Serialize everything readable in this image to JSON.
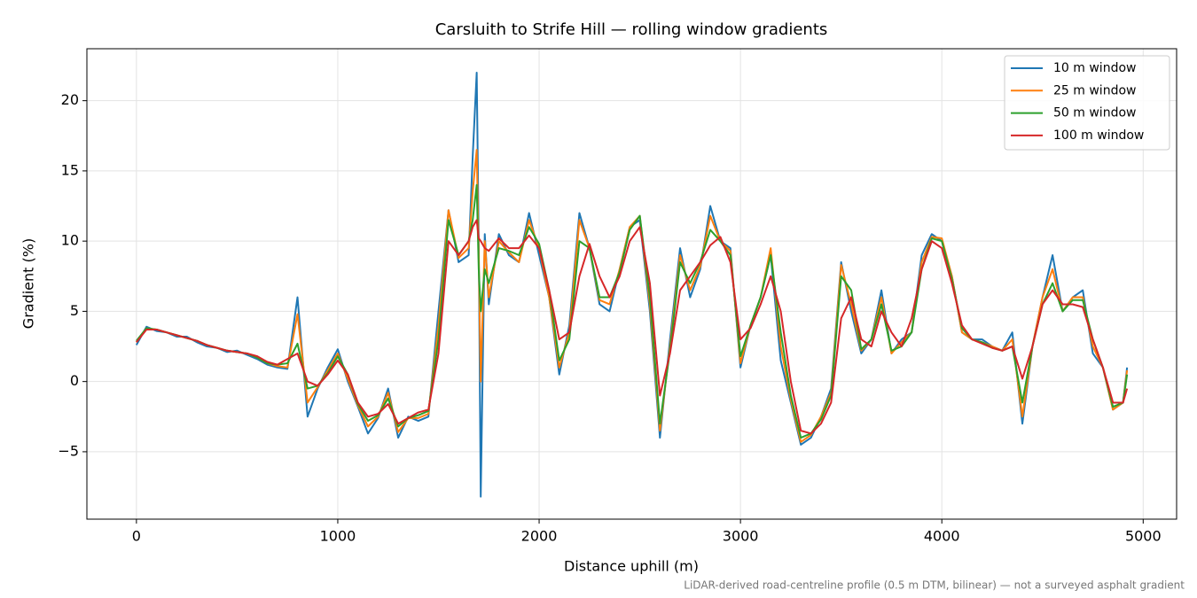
{
  "chart_data": {
    "type": "line",
    "title": "Carsluith to Strife Hill — rolling window gradients",
    "xlabel": "Distance uphill (m)",
    "ylabel": "Gradient (%)",
    "note": "LiDAR-derived road-centreline profile (0.5 m DTM, bilinear) — not a surveyed asphalt gradient",
    "xlim": [
      -246,
      5166
    ],
    "ylim": [
      -9.8,
      23.7
    ],
    "xticks": [
      0,
      1000,
      2000,
      3000,
      4000,
      5000
    ],
    "yticks": [
      {
        "value": -5,
        "label": "−5"
      },
      0,
      5,
      10,
      15,
      20
    ],
    "grid": true,
    "legend": "upper right",
    "x": [
      0,
      50,
      100,
      150,
      200,
      250,
      300,
      350,
      400,
      450,
      500,
      550,
      600,
      650,
      700,
      750,
      800,
      850,
      900,
      950,
      1000,
      1050,
      1100,
      1150,
      1200,
      1250,
      1300,
      1350,
      1400,
      1450,
      1500,
      1550,
      1600,
      1650,
      1670,
      1690,
      1700,
      1710,
      1730,
      1750,
      1800,
      1850,
      1900,
      1950,
      2000,
      2050,
      2100,
      2150,
      2200,
      2250,
      2300,
      2350,
      2400,
      2450,
      2500,
      2550,
      2600,
      2650,
      2700,
      2750,
      2800,
      2850,
      2900,
      2950,
      3000,
      3050,
      3100,
      3150,
      3200,
      3250,
      3300,
      3350,
      3400,
      3450,
      3500,
      3550,
      3600,
      3650,
      3700,
      3750,
      3800,
      3850,
      3900,
      3950,
      4000,
      4050,
      4100,
      4150,
      4200,
      4250,
      4300,
      4350,
      4400,
      4450,
      4500,
      4550,
      4600,
      4650,
      4700,
      4750,
      4800,
      4850,
      4900,
      4920
    ],
    "series": [
      {
        "name": "10 m window",
        "color": "#1f77b4",
        "values": [
          2.6,
          3.9,
          3.6,
          3.5,
          3.2,
          3.2,
          2.8,
          2.5,
          2.4,
          2.1,
          2.2,
          1.9,
          1.6,
          1.2,
          1.0,
          0.9,
          6.0,
          -2.5,
          -0.5,
          1.0,
          2.3,
          0.0,
          -1.8,
          -3.7,
          -2.6,
          -0.5,
          -4.0,
          -2.5,
          -2.8,
          -2.5,
          5.0,
          12.2,
          8.5,
          9.0,
          16.0,
          22.0,
          10.0,
          -8.2,
          10.5,
          5.5,
          10.5,
          9.0,
          8.5,
          12.0,
          9.0,
          6.0,
          0.5,
          4.0,
          12.0,
          9.5,
          5.5,
          5.0,
          8.0,
          11.0,
          11.5,
          5.0,
          -4.0,
          3.0,
          9.5,
          6.0,
          8.0,
          12.5,
          10.0,
          9.5,
          1.0,
          4.0,
          6.0,
          9.0,
          1.5,
          -1.5,
          -4.5,
          -4.0,
          -2.5,
          -0.5,
          8.5,
          5.0,
          2.0,
          3.0,
          6.5,
          2.0,
          3.0,
          3.5,
          9.0,
          10.5,
          10.0,
          7.5,
          3.5,
          3.0,
          3.0,
          2.5,
          2.2,
          3.5,
          -3.0,
          2.5,
          6.0,
          9.0,
          5.0,
          6.0,
          6.5,
          2.0,
          1.0,
          -2.0,
          -1.5,
          1.0
        ]
      },
      {
        "name": "25 m window",
        "color": "#ff7f0e",
        "values": [
          2.8,
          3.8,
          3.7,
          3.5,
          3.3,
          3.1,
          2.9,
          2.6,
          2.4,
          2.2,
          2.1,
          2.0,
          1.7,
          1.3,
          1.1,
          1.0,
          4.8,
          -1.5,
          -0.4,
          0.8,
          2.0,
          0.2,
          -1.7,
          -3.2,
          -2.5,
          -0.8,
          -3.6,
          -2.6,
          -2.6,
          -2.3,
          4.0,
          12.2,
          8.8,
          9.5,
          13.5,
          16.5,
          9.0,
          0.0,
          10.0,
          6.0,
          10.0,
          9.2,
          8.5,
          11.5,
          9.5,
          6.0,
          1.0,
          3.5,
          11.5,
          9.5,
          5.8,
          5.5,
          8.0,
          11.0,
          11.8,
          5.5,
          -3.5,
          2.5,
          9.0,
          6.5,
          8.2,
          11.8,
          10.0,
          9.3,
          1.3,
          4.0,
          6.0,
          9.5,
          2.5,
          -1.3,
          -4.3,
          -3.8,
          -2.5,
          -0.8,
          8.3,
          5.5,
          2.2,
          3.0,
          6.0,
          2.0,
          2.8,
          3.5,
          8.5,
          10.3,
          10.2,
          7.5,
          3.5,
          3.0,
          2.8,
          2.5,
          2.2,
          3.0,
          -2.5,
          2.5,
          6.0,
          8.0,
          5.0,
          6.0,
          6.0,
          2.5,
          1.0,
          -2.0,
          -1.5,
          0.8
        ]
      },
      {
        "name": "50 m window",
        "color": "#2ca02c",
        "values": [
          2.9,
          3.8,
          3.7,
          3.5,
          3.3,
          3.1,
          2.9,
          2.6,
          2.4,
          2.2,
          2.1,
          2.0,
          1.7,
          1.3,
          1.2,
          1.3,
          2.7,
          -0.5,
          -0.3,
          0.6,
          1.8,
          0.5,
          -1.6,
          -2.8,
          -2.4,
          -1.2,
          -3.2,
          -2.6,
          -2.4,
          -2.1,
          3.0,
          11.5,
          9.0,
          10.0,
          11.5,
          14.0,
          8.0,
          5.0,
          8.0,
          7.0,
          9.5,
          9.3,
          9.0,
          11.0,
          9.8,
          6.5,
          1.5,
          3.0,
          10.0,
          9.5,
          6.0,
          6.0,
          7.8,
          10.8,
          11.8,
          6.0,
          -3.0,
          2.2,
          8.5,
          7.0,
          8.5,
          10.8,
          10.0,
          9.0,
          1.8,
          4.0,
          6.0,
          9.0,
          3.5,
          -1.0,
          -4.0,
          -3.7,
          -2.7,
          -1.0,
          7.5,
          6.5,
          2.3,
          3.0,
          5.5,
          2.2,
          2.5,
          3.5,
          8.0,
          10.2,
          10.0,
          7.3,
          3.8,
          3.0,
          2.8,
          2.4,
          2.2,
          2.5,
          -1.5,
          2.5,
          5.5,
          7.0,
          5.0,
          5.8,
          5.8,
          3.0,
          1.0,
          -1.8,
          -1.5,
          0.5
        ]
      },
      {
        "name": "100 m window",
        "color": "#d62728",
        "values": [
          2.8,
          3.7,
          3.7,
          3.5,
          3.3,
          3.1,
          2.9,
          2.6,
          2.4,
          2.2,
          2.1,
          2.0,
          1.8,
          1.4,
          1.2,
          1.6,
          2.0,
          0.0,
          -0.3,
          0.5,
          1.5,
          0.5,
          -1.5,
          -2.5,
          -2.3,
          -1.6,
          -3.0,
          -2.6,
          -2.2,
          -2.0,
          2.0,
          10.0,
          9.0,
          10.0,
          11.0,
          11.5,
          10.2,
          10.0,
          9.5,
          9.3,
          10.2,
          9.5,
          9.5,
          10.4,
          9.5,
          6.5,
          3.0,
          3.5,
          7.5,
          9.8,
          7.5,
          6.0,
          7.5,
          10.0,
          11.0,
          7.0,
          -1.0,
          2.0,
          6.5,
          7.5,
          8.5,
          9.7,
          10.3,
          8.5,
          3.0,
          3.8,
          5.5,
          7.5,
          5.0,
          0.0,
          -3.5,
          -3.7,
          -3.0,
          -1.5,
          4.5,
          6.0,
          3.0,
          2.5,
          5.0,
          3.5,
          2.5,
          4.5,
          8.0,
          10.0,
          9.5,
          7.0,
          4.0,
          3.0,
          2.7,
          2.4,
          2.2,
          2.5,
          0.2,
          2.5,
          5.5,
          6.5,
          5.5,
          5.5,
          5.3,
          3.0,
          1.0,
          -1.5,
          -1.5,
          -0.5
        ]
      }
    ]
  }
}
